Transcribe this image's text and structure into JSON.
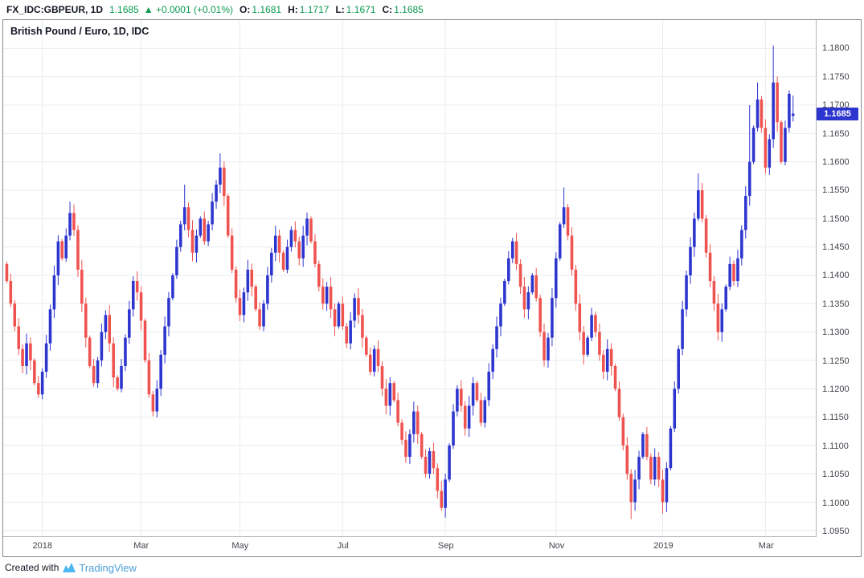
{
  "header": {
    "symbol": "FX_IDC:GBPEUR, 1D",
    "last_price": "1.1685",
    "change": "▲ +0.0001 (+0.01%)",
    "o_label": "O:",
    "o_value": "1.1681",
    "h_label": "H:",
    "h_value": "1.1717",
    "l_label": "L:",
    "l_value": "1.1671",
    "c_label": "C:",
    "c_value": "1.1685"
  },
  "legend": "British Pound / Euro, 1D, IDC",
  "footer": {
    "created_with": "Created with",
    "brand": "TradingView"
  },
  "colors": {
    "up": "#2d35cf",
    "down": "#ef5350",
    "grid": "#e8ebf1",
    "axis_text": "#42454d",
    "green": "#089950",
    "price_tag_bg": "#2d35cf",
    "brand_icon": "#4db7f0",
    "brand_text": "#4ba0d8"
  },
  "chart_data": {
    "type": "candlestick",
    "title": "British Pound / Euro, 1D, IDC",
    "symbol": "GBPEUR",
    "timeframe": "1D",
    "grid": true,
    "y_min": 1.094,
    "y_max": 1.185,
    "y_ticks": [
      1.18,
      1.175,
      1.17,
      1.165,
      1.16,
      1.155,
      1.15,
      1.145,
      1.14,
      1.135,
      1.13,
      1.125,
      1.12,
      1.115,
      1.11,
      1.105,
      1.1,
      1.095
    ],
    "x_ticks": [
      {
        "label": "2018",
        "index": 9,
        "major": true
      },
      {
        "label": "Mar",
        "index": 34,
        "major": false
      },
      {
        "label": "May",
        "index": 59,
        "major": false
      },
      {
        "label": "Jul",
        "index": 85,
        "major": false
      },
      {
        "label": "Sep",
        "index": 111,
        "major": false
      },
      {
        "label": "Nov",
        "index": 139,
        "major": false
      },
      {
        "label": "2019",
        "index": 166,
        "major": true
      },
      {
        "label": "Mar",
        "index": 192,
        "major": false
      }
    ],
    "first_open": 1.142,
    "closes": [
      1.139,
      1.135,
      1.131,
      1.127,
      1.124,
      1.128,
      1.125,
      1.121,
      1.119,
      1.123,
      1.128,
      1.134,
      1.14,
      1.146,
      1.143,
      1.147,
      1.151,
      1.148,
      1.141,
      1.135,
      1.129,
      1.124,
      1.121,
      1.125,
      1.13,
      1.133,
      1.128,
      1.122,
      1.12,
      1.124,
      1.129,
      1.134,
      1.139,
      1.137,
      1.132,
      1.125,
      1.119,
      1.116,
      1.12,
      1.126,
      1.131,
      1.136,
      1.14,
      1.145,
      1.149,
      1.152,
      1.148,
      1.144,
      1.147,
      1.15,
      1.146,
      1.149,
      1.153,
      1.156,
      1.159,
      1.154,
      1.147,
      1.141,
      1.136,
      1.133,
      1.137,
      1.141,
      1.138,
      1.134,
      1.131,
      1.135,
      1.14,
      1.144,
      1.147,
      1.144,
      1.141,
      1.145,
      1.148,
      1.146,
      1.143,
      1.147,
      1.15,
      1.146,
      1.142,
      1.138,
      1.135,
      1.138,
      1.134,
      1.131,
      1.135,
      1.131,
      1.128,
      1.132,
      1.136,
      1.133,
      1.129,
      1.126,
      1.123,
      1.127,
      1.124,
      1.12,
      1.117,
      1.121,
      1.118,
      1.114,
      1.111,
      1.108,
      1.112,
      1.116,
      1.112,
      1.108,
      1.105,
      1.109,
      1.106,
      1.102,
      1.099,
      1.104,
      1.11,
      1.116,
      1.12,
      1.117,
      1.113,
      1.117,
      1.121,
      1.118,
      1.114,
      1.118,
      1.123,
      1.127,
      1.131,
      1.135,
      1.139,
      1.143,
      1.146,
      1.142,
      1.138,
      1.134,
      1.137,
      1.14,
      1.136,
      1.13,
      1.125,
      1.129,
      1.136,
      1.143,
      1.149,
      1.152,
      1.147,
      1.141,
      1.135,
      1.13,
      1.126,
      1.129,
      1.133,
      1.13,
      1.126,
      1.123,
      1.127,
      1.124,
      1.12,
      1.115,
      1.11,
      1.105,
      1.1,
      1.104,
      1.108,
      1.112,
      1.108,
      1.104,
      1.108,
      1.104,
      1.1,
      1.106,
      1.113,
      1.12,
      1.127,
      1.134,
      1.14,
      1.145,
      1.15,
      1.155,
      1.15,
      1.144,
      1.139,
      1.135,
      1.13,
      1.134,
      1.138,
      1.142,
      1.139,
      1.143,
      1.148,
      1.154,
      1.16,
      1.166,
      1.171,
      1.166,
      1.159,
      1.164,
      1.174,
      1.167,
      1.16,
      1.166,
      1.172,
      1.1685
    ],
    "wick_overrides": {
      "16": {
        "h": 1.153
      },
      "45": {
        "h": 1.156
      },
      "54": {
        "h": 1.1615
      },
      "110": {
        "l": 1.0985
      },
      "141": {
        "h": 1.1555
      },
      "158": {
        "l": 1.097
      },
      "166": {
        "l": 1.098
      },
      "175": {
        "h": 1.158
      },
      "188": {
        "h": 1.17
      },
      "190": {
        "h": 1.174
      },
      "194": {
        "h": 1.1805
      },
      "199": {
        "o": 1.1681,
        "h": 1.1717,
        "l": 1.1671
      }
    },
    "last_price": 1.1685,
    "last_price_label": "1.1685"
  }
}
